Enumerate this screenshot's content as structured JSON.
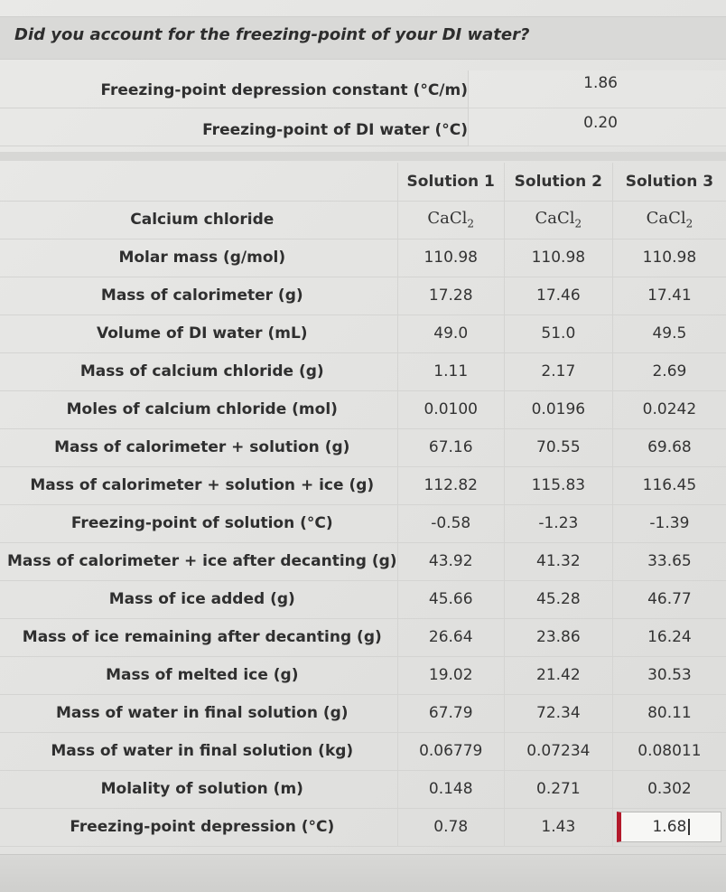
{
  "question": "Did you account for the freezing-point of your DI water?",
  "constants": [
    {
      "label": "Freezing-point depression constant (°C/m)",
      "value": "1.86"
    },
    {
      "label": "Freezing-point of DI water (°C)",
      "value": "0.20"
    }
  ],
  "columns": [
    "Solution 1",
    "Solution 2",
    "Solution 3"
  ],
  "formula_row": {
    "label": "Calcium chloride",
    "formula_base": "CaCl",
    "formula_sub": "2"
  },
  "rows": [
    {
      "label": "Molar mass (g/mol)",
      "values": [
        "110.98",
        "110.98",
        "110.98"
      ]
    },
    {
      "label": "Mass of calorimeter (g)",
      "values": [
        "17.28",
        "17.46",
        "17.41"
      ]
    },
    {
      "label": "Volume of DI water (mL)",
      "values": [
        "49.0",
        "51.0",
        "49.5"
      ]
    },
    {
      "label": "Mass of calcium chloride (g)",
      "values": [
        "1.11",
        "2.17",
        "2.69"
      ]
    },
    {
      "label": "Moles of calcium chloride (mol)",
      "values": [
        "0.0100",
        "0.0196",
        "0.0242"
      ]
    },
    {
      "label": "Mass of calorimeter + solution (g)",
      "values": [
        "67.16",
        "70.55",
        "69.68"
      ]
    },
    {
      "label": "Mass of calorimeter + solution + ice (g)",
      "values": [
        "112.82",
        "115.83",
        "116.45"
      ]
    },
    {
      "label": "Freezing-point of solution (°C)",
      "values": [
        "-0.58",
        "-1.23",
        "-1.39"
      ]
    },
    {
      "label": "Mass of calorimeter + ice after decanting (g)",
      "values": [
        "43.92",
        "41.32",
        "33.65"
      ]
    },
    {
      "label": "Mass of ice added (g)",
      "values": [
        "45.66",
        "45.28",
        "46.77"
      ]
    },
    {
      "label": "Mass of ice remaining after decanting (g)",
      "values": [
        "26.64",
        "23.86",
        "16.24"
      ]
    },
    {
      "label": "Mass of melted ice (g)",
      "values": [
        "19.02",
        "21.42",
        "30.53"
      ]
    },
    {
      "label": "Mass of water in final solution (g)",
      "values": [
        "67.79",
        "72.34",
        "80.11"
      ]
    },
    {
      "label": "Mass of water in final solution (kg)",
      "values": [
        "0.06779",
        "0.07234",
        "0.08011"
      ]
    },
    {
      "label": "Molality of solution (m)",
      "values": [
        "0.148",
        "0.271",
        "0.302"
      ]
    }
  ],
  "last_row": {
    "label": "Freezing-point depression (°C)",
    "values": [
      "0.78",
      "1.43"
    ],
    "input_value": "1.68"
  },
  "colors": {
    "active_input_accent": "#b3192b",
    "background": "#e6e6e4"
  }
}
